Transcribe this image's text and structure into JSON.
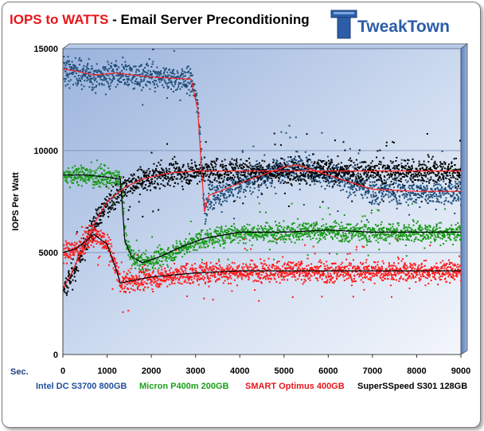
{
  "header": {
    "title_red": "IOPS to WATTS",
    "title_rest": " - Email Server Preconditioning",
    "logo_text": "TweakTown"
  },
  "chart_data": {
    "type": "scatter",
    "title": "IOPS to WATTS - Email Server Preconditioning",
    "xlabel": "Sec.",
    "ylabel": "IOPS Per Watt",
    "xlim": [
      0,
      9000
    ],
    "ylim": [
      0,
      15000
    ],
    "x_ticks": [
      "0",
      "1000",
      "2000",
      "3000",
      "4000",
      "5000",
      "6000",
      "7000",
      "8000",
      "9000"
    ],
    "y_ticks": [
      "0",
      "5000",
      "10000",
      "15000"
    ],
    "grid": "horizontal",
    "legend_placement": "bottom",
    "background": "gradient blue-white",
    "series": [
      {
        "name": "Intel DC S3700 800GB",
        "color": "#1f4e79",
        "trend_color": "#ff2020",
        "trend": [
          [
            0,
            14000
          ],
          [
            300,
            13900
          ],
          [
            700,
            13700
          ],
          [
            1200,
            13800
          ],
          [
            2000,
            13600
          ],
          [
            2900,
            13500
          ],
          [
            3050,
            12000
          ],
          [
            3200,
            7000
          ],
          [
            3300,
            7800
          ],
          [
            4000,
            8400
          ],
          [
            5000,
            9200
          ],
          [
            5300,
            9300
          ],
          [
            6000,
            8800
          ],
          [
            7000,
            8100
          ],
          [
            8000,
            8000
          ],
          [
            9000,
            8000
          ]
        ],
        "spread": 700
      },
      {
        "name": "Micron P400m 200GB",
        "color": "#1a9a1a",
        "trend_color": "#000000",
        "trend": [
          [
            0,
            8800
          ],
          [
            500,
            8800
          ],
          [
            1000,
            8700
          ],
          [
            1300,
            8600
          ],
          [
            1400,
            5600
          ],
          [
            1550,
            4800
          ],
          [
            1800,
            4500
          ],
          [
            2200,
            4800
          ],
          [
            2700,
            5300
          ],
          [
            3200,
            5700
          ],
          [
            4000,
            6000
          ],
          [
            5000,
            6000
          ],
          [
            6000,
            6100
          ],
          [
            7000,
            6000
          ],
          [
            8000,
            6000
          ],
          [
            9000,
            6000
          ]
        ],
        "spread": 500
      },
      {
        "name": "SMART Optimus 400GB",
        "color": "#ff1a1a",
        "trend_color": "#000000",
        "trend": [
          [
            0,
            5000
          ],
          [
            300,
            5200
          ],
          [
            700,
            5900
          ],
          [
            1000,
            5400
          ],
          [
            1200,
            4200
          ],
          [
            1300,
            3500
          ],
          [
            1500,
            3600
          ],
          [
            2000,
            3800
          ],
          [
            2500,
            3900
          ],
          [
            3000,
            4000
          ],
          [
            4000,
            4100
          ],
          [
            5000,
            4100
          ],
          [
            6000,
            4100
          ],
          [
            7000,
            4100
          ],
          [
            8000,
            4100
          ],
          [
            9000,
            4100
          ]
        ],
        "spread": 550
      },
      {
        "name": "SuperSSpeed S301 128GB",
        "color": "#000000",
        "trend_color": "#ff2020",
        "trend": [
          [
            0,
            3200
          ],
          [
            200,
            4000
          ],
          [
            600,
            6000
          ],
          [
            1000,
            7500
          ],
          [
            1400,
            8200
          ],
          [
            1800,
            8600
          ],
          [
            2400,
            8900
          ],
          [
            3000,
            9000
          ],
          [
            4000,
            9000
          ],
          [
            5000,
            9000
          ],
          [
            6000,
            9000
          ],
          [
            7000,
            9000
          ],
          [
            8000,
            9000
          ],
          [
            9000,
            9000
          ]
        ],
        "spread": 650
      }
    ]
  },
  "colors": {
    "title_red": "#e8151b",
    "legend_intel": "#1f4e9a",
    "legend_micron": "#1aa01a",
    "legend_smart": "#e8151b",
    "legend_super": "#000000"
  }
}
